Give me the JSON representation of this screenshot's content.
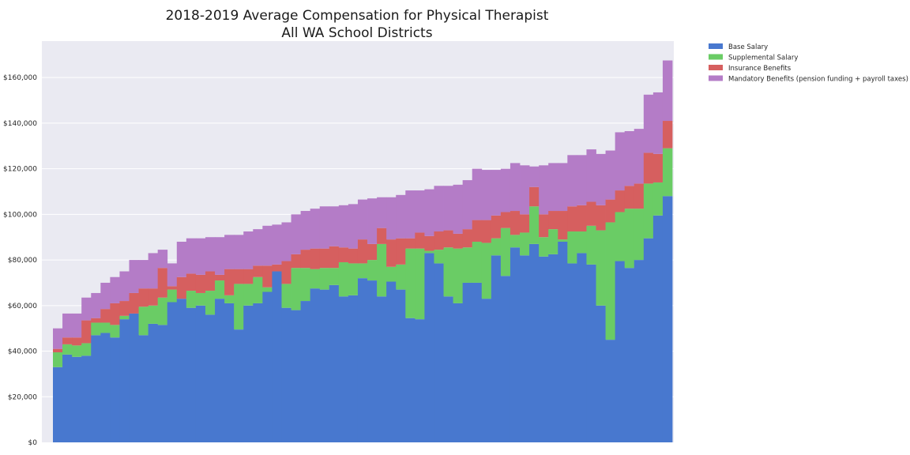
{
  "chart_data": {
    "type": "bar",
    "stacked": true,
    "title": [
      "2018-2019 Average Compensation for Physical Therapist",
      "All WA School Districts"
    ],
    "xlabel": "",
    "ylabel": "",
    "ylim": [
      0,
      176000
    ],
    "yticks": [
      0,
      20000,
      40000,
      60000,
      80000,
      100000,
      120000,
      140000,
      160000
    ],
    "ytick_labels": [
      "$0",
      "$20,000",
      "$40,000",
      "$60,000",
      "$80,000",
      "$100,000",
      "$120,000",
      "$140,000",
      "$160,000"
    ],
    "grid": "horizontal",
    "legend_position": "outside-top-right",
    "colors": {
      "background": "#eaeaf2",
      "grid": "#ffffff",
      "Base Salary": "#4878cf",
      "Supplemental Salary": "#6acc65",
      "Insurance Benefits": "#d65f5f",
      "Mandatory Benefits (pension funding + payroll taxes)": "#b47cc7"
    },
    "series": [
      {
        "name": "Base Salary",
        "values": [
          33000,
          38500,
          37500,
          38000,
          47000,
          48000,
          46000,
          54000,
          56500,
          47000,
          52000,
          51500,
          61500,
          63000,
          59000,
          60000,
          56000,
          63000,
          61000,
          49500,
          60000,
          61000,
          66000,
          75000,
          59000,
          58000,
          62000,
          67500,
          67000,
          69000,
          64000,
          64500,
          72000,
          71000,
          64000,
          70500,
          67000,
          54500,
          54000,
          83000,
          78500,
          64000,
          61000,
          70000,
          70000,
          63000,
          82000,
          73000,
          85500,
          82000,
          87000,
          81500,
          82500,
          88000,
          78500,
          83000,
          78000,
          60000,
          45000,
          79500,
          76500,
          80000,
          89500,
          99500,
          108000
        ]
      },
      {
        "name": "Supplemental Salary",
        "values": [
          6500,
          4500,
          5000,
          5500,
          5500,
          4500,
          5500,
          1500,
          0,
          12500,
          8000,
          12000,
          5500,
          0,
          7500,
          5500,
          10500,
          8000,
          3500,
          20000,
          9500,
          11500,
          2000,
          0,
          10500,
          18500,
          14500,
          8500,
          9500,
          7500,
          15000,
          14000,
          6500,
          9000,
          23000,
          6500,
          11000,
          30500,
          31000,
          1000,
          6000,
          21500,
          24000,
          15500,
          18000,
          24500,
          7500,
          21000,
          5500,
          10000,
          16500,
          8500,
          11000,
          1000,
          14000,
          9500,
          17000,
          33000,
          51500,
          21500,
          26000,
          22500,
          24000,
          14500,
          21000
        ]
      },
      {
        "name": "Insurance Benefits",
        "values": [
          1500,
          3000,
          3500,
          10000,
          2000,
          6000,
          9500,
          6500,
          9000,
          8000,
          7500,
          13000,
          1500,
          9500,
          7500,
          8000,
          8500,
          2500,
          11500,
          6500,
          6500,
          5000,
          9500,
          3000,
          10000,
          6000,
          8000,
          9000,
          8500,
          9500,
          6500,
          6500,
          10500,
          7000,
          7000,
          12000,
          11500,
          4500,
          7000,
          6500,
          8000,
          7500,
          6500,
          8000,
          9500,
          10000,
          10000,
          7000,
          10500,
          8000,
          8500,
          10000,
          8000,
          12500,
          11000,
          11500,
          10500,
          11000,
          10000,
          9500,
          10000,
          11000,
          13500,
          12500,
          12000
        ]
      },
      {
        "name": "Mandatory Benefits (pension funding + payroll taxes)",
        "values": [
          9000,
          10500,
          10500,
          10000,
          11000,
          11500,
          11500,
          13000,
          14500,
          12500,
          15500,
          8000,
          10000,
          15500,
          15500,
          16000,
          15000,
          16500,
          15000,
          15000,
          16500,
          16000,
          17500,
          17500,
          17000,
          17500,
          17000,
          17500,
          18500,
          17500,
          18500,
          19500,
          17500,
          20000,
          13500,
          18500,
          19000,
          21000,
          18500,
          20500,
          20000,
          19500,
          21500,
          21500,
          22500,
          22000,
          20000,
          19000,
          21000,
          21500,
          9000,
          21500,
          21000,
          21000,
          22500,
          22000,
          23000,
          22500,
          21500,
          25500,
          24000,
          24000,
          25500,
          27000,
          26500
        ]
      }
    ]
  }
}
